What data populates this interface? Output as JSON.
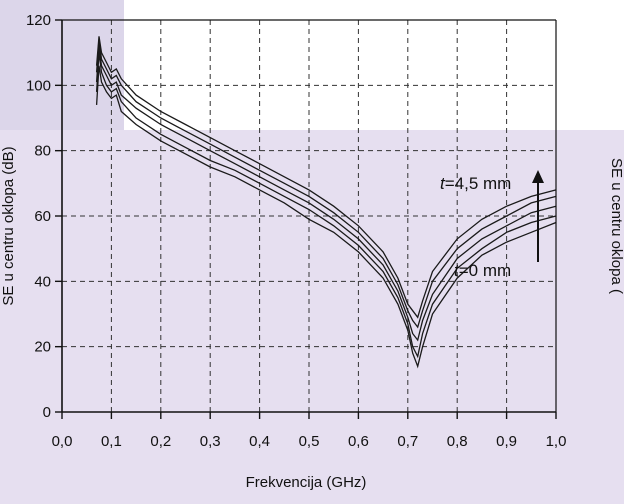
{
  "chart_data": {
    "type": "line",
    "xlabel": "Frekvencija (GHz)",
    "ylabel": "SE u centru oklopa (dB)",
    "ylabel_right_partial": "SE u centru oklopa (",
    "xlim": [
      0.0,
      1.0
    ],
    "ylim": [
      0,
      120
    ],
    "x_ticks": [
      "0,0",
      "0,1",
      "0,2",
      "0,3",
      "0,4",
      "0,5",
      "0,6",
      "0,7",
      "0,8",
      "0,9",
      "1,0"
    ],
    "y_ticks": [
      "0",
      "20",
      "40",
      "60",
      "80",
      "100",
      "120"
    ],
    "grid": true,
    "annotations": {
      "top": {
        "var": "t",
        "rest": "=4,5 mm"
      },
      "bottom": {
        "var": "t",
        "rest": "=0 mm"
      }
    },
    "series": [
      {
        "x": [
          0.07,
          0.075,
          0.08,
          0.09,
          0.1,
          0.11,
          0.12,
          0.15,
          0.2,
          0.25,
          0.3,
          0.35,
          0.4,
          0.45,
          0.5,
          0.55,
          0.6,
          0.65,
          0.68,
          0.7,
          0.71,
          0.72,
          0.73,
          0.75,
          0.8,
          0.85,
          0.9,
          0.95,
          1.0
        ],
        "y": [
          94,
          106,
          101,
          98,
          96,
          97,
          92,
          88,
          83,
          79,
          75,
          72,
          68,
          64,
          59,
          55,
          49,
          41,
          33,
          25,
          18,
          14,
          20,
          30,
          41,
          48,
          52,
          55,
          58
        ]
      },
      {
        "x": [
          0.07,
          0.075,
          0.08,
          0.09,
          0.1,
          0.11,
          0.12,
          0.15,
          0.2,
          0.25,
          0.3,
          0.35,
          0.4,
          0.45,
          0.5,
          0.55,
          0.6,
          0.65,
          0.68,
          0.7,
          0.71,
          0.72,
          0.73,
          0.75,
          0.8,
          0.85,
          0.9,
          0.95,
          1.0
        ],
        "y": [
          98,
          110,
          104,
          100,
          98,
          99,
          95,
          90,
          85,
          81,
          77,
          74,
          70,
          66,
          62,
          57,
          51,
          43,
          35,
          27,
          20,
          17,
          24,
          33,
          44,
          50,
          55,
          58,
          60
        ]
      },
      {
        "x": [
          0.07,
          0.075,
          0.08,
          0.09,
          0.1,
          0.11,
          0.12,
          0.15,
          0.2,
          0.25,
          0.3,
          0.35,
          0.4,
          0.45,
          0.5,
          0.55,
          0.6,
          0.65,
          0.68,
          0.7,
          0.71,
          0.72,
          0.73,
          0.75,
          0.8,
          0.85,
          0.9,
          0.95,
          1.0
        ],
        "y": [
          101,
          112,
          106,
          103,
          100,
          101,
          97,
          93,
          88,
          84,
          80,
          76,
          72,
          68,
          64,
          59,
          53,
          45,
          37,
          29,
          24,
          22,
          28,
          36,
          47,
          53,
          57,
          61,
          63
        ]
      },
      {
        "x": [
          0.07,
          0.075,
          0.08,
          0.09,
          0.1,
          0.11,
          0.12,
          0.15,
          0.2,
          0.25,
          0.3,
          0.35,
          0.4,
          0.45,
          0.5,
          0.55,
          0.6,
          0.65,
          0.68,
          0.7,
          0.71,
          0.72,
          0.73,
          0.75,
          0.8,
          0.85,
          0.9,
          0.95,
          1.0
        ],
        "y": [
          104,
          114,
          108,
          105,
          102,
          103,
          100,
          95,
          90,
          86,
          82,
          78,
          74,
          70,
          66,
          61,
          55,
          47,
          39,
          31,
          28,
          26,
          31,
          40,
          50,
          56,
          60,
          64,
          66
        ]
      },
      {
        "x": [
          0.07,
          0.075,
          0.08,
          0.09,
          0.1,
          0.11,
          0.12,
          0.15,
          0.2,
          0.25,
          0.3,
          0.35,
          0.4,
          0.45,
          0.5,
          0.55,
          0.6,
          0.65,
          0.68,
          0.7,
          0.71,
          0.72,
          0.73,
          0.75,
          0.8,
          0.85,
          0.9,
          0.95,
          1.0
        ],
        "y": [
          106,
          115,
          110,
          107,
          104,
          105,
          102,
          97,
          92,
          88,
          84,
          80,
          76,
          72,
          68,
          63,
          57,
          49,
          41,
          33,
          31,
          29,
          34,
          43,
          53,
          59,
          63,
          66,
          68
        ]
      }
    ]
  },
  "colors": {
    "panel_back": "#dcd6ea",
    "panel_front": "#e6dff0",
    "line": "#1a1a1a",
    "grid": "#333333"
  }
}
